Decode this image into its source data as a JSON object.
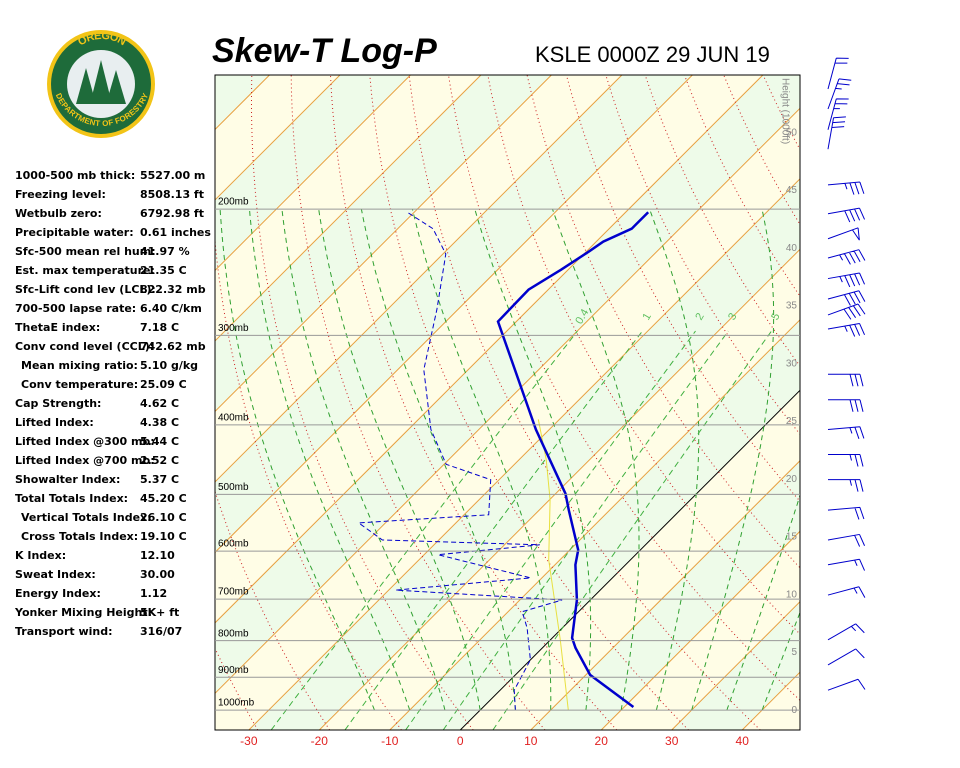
{
  "header": {
    "logo_top": "OREGON",
    "logo_bottom": "DEPARTMENT OF FORESTRY"
  },
  "indices": [
    [
      "1000-500 mb thick:",
      "5527.00 m"
    ],
    [
      "Freezing level:",
      "8508.13 ft"
    ],
    [
      "Wetbulb zero:",
      "6792.98 ft"
    ],
    [
      "Precipitable water:",
      "0.61 inches"
    ],
    [
      "Sfc-500 mean rel hum:",
      "41.97 %"
    ],
    [
      "Est. max temperature:",
      "21.35 C"
    ],
    [
      "Sfc-Lift cond lev (LCL):",
      "822.32 mb"
    ],
    [
      "700-500 lapse rate:",
      "6.40 C/km"
    ],
    [
      "ThetaE index:",
      "7.18 C"
    ],
    [
      "Conv cond level (CCL):",
      "742.62 mb"
    ],
    [
      "Mean mixing ratio:",
      "5.10 g/kg"
    ],
    [
      "Conv temperature:",
      "25.09 C"
    ],
    [
      "Cap Strength:",
      "4.62 C"
    ],
    [
      "Lifted Index:",
      "4.38 C"
    ],
    [
      "Lifted Index @300 mb:",
      "5.44 C"
    ],
    [
      "Lifted Index @700 mb:",
      "2.52 C"
    ],
    [
      "Showalter Index:",
      "5.37 C"
    ],
    [
      "Total Totals Index:",
      "45.20 C"
    ],
    [
      "Vertical Totals Index:",
      "26.10 C"
    ],
    [
      "Cross Totals Index:",
      "19.10 C"
    ],
    [
      "K Index:",
      "12.10"
    ],
    [
      "Sweat Index:",
      "30.00"
    ],
    [
      "Energy Index:",
      "1.12"
    ],
    [
      "Yonker Mixing Height:",
      "5K+ ft"
    ],
    [
      "Transport wind:",
      "316/07"
    ]
  ],
  "chart_data": {
    "type": "skewt",
    "title": "Skew-T Log-P",
    "subtitle": "KSLE 0000Z 29 JUN 19",
    "xlim": [
      -34.8,
      48.2
    ],
    "xticks": [
      -30,
      -20,
      -10,
      0,
      10,
      20,
      30,
      40
    ],
    "plim": [
      1066,
      130
    ],
    "pticks": [
      {
        "value": 1000,
        "label": "1000mb"
      },
      {
        "value": 900,
        "label": "900mb"
      },
      {
        "value": 800,
        "label": "800mb"
      },
      {
        "value": 700,
        "label": "700mb"
      },
      {
        "value": 600,
        "label": "600mb"
      },
      {
        "value": 500,
        "label": "500mb"
      },
      {
        "value": 400,
        "label": "400mb"
      },
      {
        "value": 300,
        "label": "300mb"
      },
      {
        "value": 200,
        "label": "200mb"
      }
    ],
    "height_label": "Height (1000ft)",
    "hlim": [
      -1.7,
      55
    ],
    "hticks": [
      0,
      5,
      10,
      15,
      20,
      25,
      30,
      35,
      40,
      45,
      50
    ],
    "mixing_ratio_lines": [
      0.4,
      1,
      2,
      3,
      5
    ],
    "temperature": {
      "color": "#0000cc",
      "pressure": [
        990,
        893,
        819,
        793,
        702,
        627,
        598,
        526,
        499,
        406,
        287,
        259,
        243,
        229,
        222,
        213,
        202
      ],
      "values": [
        21.3,
        10.6,
        4.7,
        2.8,
        -1.9,
        -7.1,
        -8.8,
        -15.8,
        -18.6,
        -31.9,
        -52.6,
        -52.8,
        -51,
        -49.6,
        -49,
        -46.8,
        -46.8
      ]
    },
    "dewpoint": {
      "color": "#0000cc",
      "pressure": [
        1000,
        938,
        851,
        768,
        729,
        702,
        680,
        654,
        607,
        588,
        579,
        548,
        534,
        477,
        454,
        406,
        335,
        276,
        231,
        213,
        202
      ],
      "values": [
        5,
        2,
        0,
        -5,
        -8,
        -4,
        -29,
        -11.6,
        -28,
        -15,
        -38,
        -43.8,
        -26.5,
        -31.2,
        -39.7,
        -46.8,
        -56.3,
        -63,
        -69.6,
        -75,
        -81
      ]
    },
    "parcel": {
      "color": "#e8e040",
      "pressure": [
        1000,
        798,
        617,
        509,
        447,
        393
      ],
      "values": [
        12.5,
        1.4,
        -11.6,
        -19.9,
        -26.2,
        -33
      ]
    },
    "wind_barbs": {
      "pressure": [
        938,
        865,
        798,
        691,
        627,
        579,
        526,
        477,
        440,
        406,
        369,
        340,
        294,
        281,
        267,
        250,
        234,
        220,
        203,
        185,
        165,
        155,
        145,
        136
      ],
      "direction": [
        70,
        60,
        60,
        75,
        80,
        80,
        85,
        90,
        90,
        85,
        90,
        90,
        80,
        70,
        75,
        80,
        75,
        70,
        80,
        85,
        10,
        15,
        20,
        15
      ],
      "speed": [
        10,
        10,
        15,
        15,
        15,
        20,
        20,
        25,
        25,
        25,
        30,
        30,
        35,
        40,
        40,
        45,
        45,
        50,
        40,
        35,
        30,
        25,
        25,
        20
      ]
    }
  }
}
